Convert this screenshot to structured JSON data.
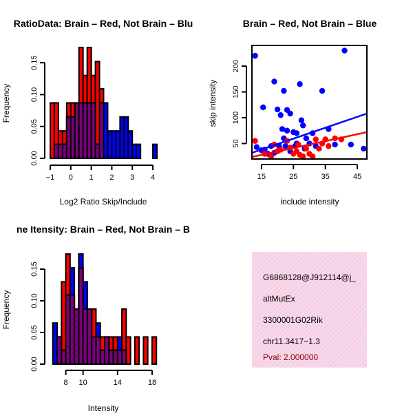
{
  "chart_data": [
    {
      "type": "bar",
      "title": "RatioData: Brain – Red, Not Brain – Blu",
      "xlabel": "Log2 Ratio Skip/Include",
      "ylabel": "Frequency",
      "xlim": [
        -1.0,
        4.3
      ],
      "ylim": [
        0,
        0.175
      ],
      "xticks": [
        -1,
        0,
        1,
        2,
        3,
        4
      ],
      "xtick_labels": [
        "−1",
        "0",
        "1",
        "2",
        "3",
        "4"
      ],
      "yticks": [
        0.0,
        0.05,
        0.1,
        0.15
      ],
      "ytick_labels": [
        "0.00",
        "0.05",
        "0.10",
        "0.15"
      ],
      "bin_edges": [
        -1.0,
        -0.8,
        -0.6,
        -0.4,
        -0.2,
        0.0,
        0.2,
        0.4,
        0.6,
        0.8,
        1.0,
        1.2,
        1.4,
        1.6,
        1.8,
        2.0,
        2.2,
        2.4,
        2.6,
        2.8,
        3.0,
        3.2,
        3.4,
        3.6,
        3.8,
        4.0,
        4.2
      ],
      "series": [
        {
          "name": "Brain",
          "color": "#ff0000",
          "values": [
            0.087,
            0.087,
            0.043,
            0.043,
            0.087,
            0.087,
            0.087,
            0.174,
            0.13,
            0.174,
            0.13,
            0.152,
            0.109,
            0.0,
            0.0,
            0.0,
            0.0,
            0.0,
            0.0,
            0.0,
            0.0,
            0.0,
            0.0,
            0.0,
            0.0,
            0.0
          ]
        },
        {
          "name": "Not Brain",
          "color": "#0000ff",
          "values": [
            0.0,
            0.022,
            0.022,
            0.022,
            0.065,
            0.065,
            0.087,
            0.087,
            0.087,
            0.087,
            0.087,
            0.022,
            0.087,
            0.087,
            0.043,
            0.043,
            0.043,
            0.065,
            0.065,
            0.043,
            0.022,
            0.022,
            0.0,
            0.0,
            0.0,
            0.022
          ]
        }
      ],
      "overlap_color": "#800080"
    },
    {
      "type": "scatter",
      "title": "Brain – Red, Not Brain – Blue",
      "xlabel": "include intensity",
      "ylabel": "skip intensity",
      "xlim": [
        12,
        48
      ],
      "ylim": [
        20,
        240
      ],
      "xticks": [
        15,
        25,
        35,
        45
      ],
      "xtick_labels": [
        "15",
        "25",
        "35",
        "45"
      ],
      "yticks": [
        50,
        100,
        150,
        200
      ],
      "ytick_labels": [
        "50",
        "100",
        "150",
        "200"
      ],
      "series": [
        {
          "name": "Not Brain",
          "color": "#0000ff",
          "points": [
            [
              13,
              220
            ],
            [
              13.5,
              43
            ],
            [
              15,
              37
            ],
            [
              15.5,
              120
            ],
            [
              16,
              38
            ],
            [
              17,
              30
            ],
            [
              18,
              45
            ],
            [
              19,
              170
            ],
            [
              19,
              32
            ],
            [
              20,
              116
            ],
            [
              20.5,
              45
            ],
            [
              21,
              105
            ],
            [
              21.5,
              78
            ],
            [
              22,
              152
            ],
            [
              22,
              60
            ],
            [
              22.5,
              45
            ],
            [
              23,
              115
            ],
            [
              23,
              75
            ],
            [
              24,
              108
            ],
            [
              24,
              35
            ],
            [
              25,
              72
            ],
            [
              25.5,
              45
            ],
            [
              26,
              70
            ],
            [
              26,
              50
            ],
            [
              27,
              165
            ],
            [
              27.5,
              95
            ],
            [
              28,
              85
            ],
            [
              28.5,
              40
            ],
            [
              29,
              60
            ],
            [
              30,
              50
            ],
            [
              31,
              70
            ],
            [
              32,
              45
            ],
            [
              34,
              152
            ],
            [
              35,
              58
            ],
            [
              36,
              78
            ],
            [
              38,
              48
            ],
            [
              41,
              230
            ],
            [
              43,
              48
            ],
            [
              47,
              40
            ]
          ],
          "fit": {
            "x": [
              12,
              48
            ],
            "y": [
              32,
              108
            ]
          }
        },
        {
          "name": "Brain",
          "color": "#ff0000",
          "points": [
            [
              13,
              55
            ],
            [
              16,
              30
            ],
            [
              18,
              25
            ],
            [
              19,
              48
            ],
            [
              20,
              35
            ],
            [
              21,
              38
            ],
            [
              23,
              55
            ],
            [
              24,
              42
            ],
            [
              25,
              30
            ],
            [
              26,
              35
            ],
            [
              26.5,
              48
            ],
            [
              27,
              28
            ],
            [
              28,
              25
            ],
            [
              29,
              40
            ],
            [
              30,
              30
            ],
            [
              31,
              25
            ],
            [
              32,
              58
            ],
            [
              33,
              40
            ],
            [
              34,
              50
            ],
            [
              35,
              58
            ],
            [
              36,
              45
            ],
            [
              38,
              60
            ],
            [
              40,
              58
            ]
          ],
          "fit": {
            "x": [
              12,
              48
            ],
            "y": [
              24,
              72
            ]
          }
        }
      ]
    },
    {
      "type": "bar",
      "title": "ne Itensity: Brain – Red, Not Brain – B",
      "xlabel": "Intensity",
      "ylabel": "Frequency",
      "xlim": [
        6.2,
        18.8
      ],
      "ylim": [
        0,
        0.175
      ],
      "xticks": [
        8,
        10,
        14,
        18
      ],
      "xtick_labels": [
        "8",
        "10",
        "14",
        "18"
      ],
      "yticks": [
        0.0,
        0.05,
        0.1,
        0.15
      ],
      "ytick_labels": [
        "0.00",
        "0.05",
        "0.10",
        "0.15"
      ],
      "bin_edges": [
        6.5,
        7.0,
        7.5,
        8.0,
        8.5,
        9.0,
        9.5,
        10.0,
        10.5,
        11.0,
        11.5,
        12.0,
        12.5,
        13.0,
        13.5,
        14.0,
        14.5,
        15.0,
        15.5,
        16.0,
        16.5,
        17.0,
        17.5,
        18.0,
        18.5
      ],
      "series": [
        {
          "name": "Brain",
          "color": "#ff0000",
          "values": [
            0.0,
            0.043,
            0.13,
            0.174,
            0.109,
            0.087,
            0.152,
            0.087,
            0.087,
            0.087,
            0.043,
            0.043,
            0.043,
            0.043,
            0.043,
            0.022,
            0.087,
            0.043,
            0.0,
            0.043,
            0.0,
            0.043,
            0.0,
            0.043
          ]
        },
        {
          "name": "Not Brain",
          "color": "#0000ff",
          "values": [
            0.065,
            0.043,
            0.022,
            0.109,
            0.152,
            0.087,
            0.174,
            0.13,
            0.087,
            0.043,
            0.065,
            0.022,
            0.043,
            0.022,
            0.022,
            0.043,
            0.022,
            0.0,
            0.0,
            0.0,
            0.0,
            0.0,
            0.0,
            0.0
          ]
        }
      ],
      "overlap_color": "#800080"
    }
  ],
  "info_panel": {
    "background": "#f7d8ea",
    "lines": [
      "G6868128@J912114@j_",
      "altMutEx",
      "3300001G02Rik",
      "chr11.3417−1.3"
    ],
    "pval": "Pval: 2.000000",
    "pval_color": "#8b0000"
  }
}
